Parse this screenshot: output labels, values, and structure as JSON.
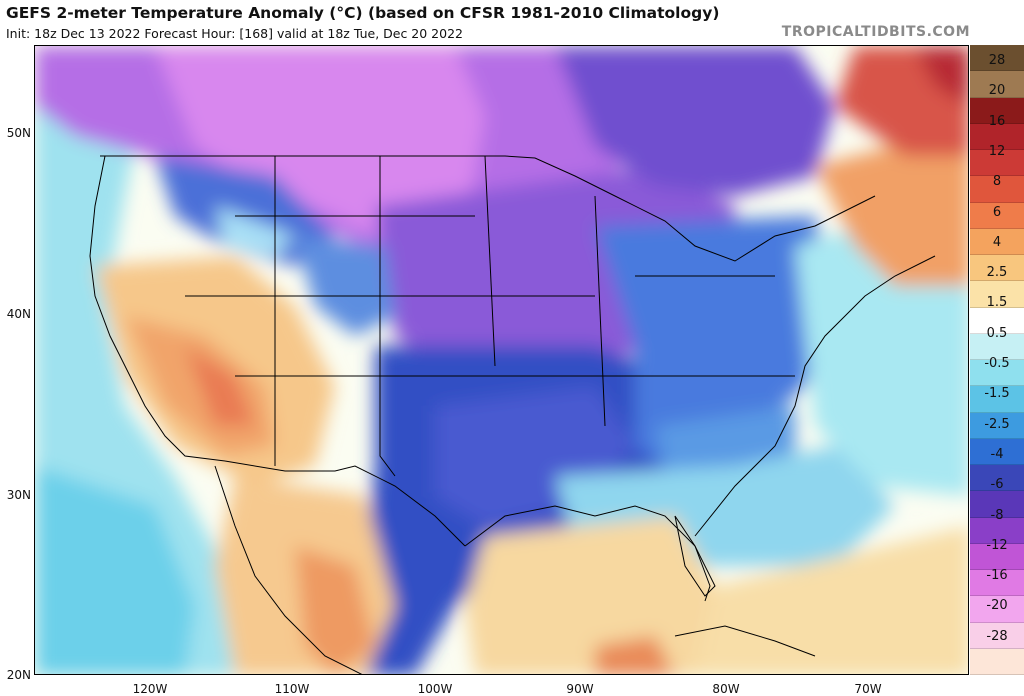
{
  "header": {
    "title": "GEFS 2-meter Temperature Anomaly (°C) (based on CFSR 1981-2010 Climatology)",
    "subtitle": "Init: 18z Dec 13 2022   Forecast Hour: [168]   valid at 18z Tue, Dec 20 2022",
    "brand": "TROPICALTIDBITS.COM"
  },
  "axes": {
    "lat_labels": [
      "50N",
      "40N",
      "30N",
      "20N"
    ],
    "lon_labels": [
      "120W",
      "110W",
      "100W",
      "90W",
      "80W",
      "70W"
    ]
  },
  "colorbar": {
    "labels": [
      "28",
      "20",
      "16",
      "12",
      "8",
      "6",
      "4",
      "2.5",
      "1.5",
      "0.5",
      "-0.5",
      "-1.5",
      "-2.5",
      "-4",
      "-6",
      "-8",
      "-12",
      "-16",
      "-20",
      "-28"
    ],
    "colors": [
      "#6b4f2f",
      "#9e7a52",
      "#8b1a1a",
      "#b0242a",
      "#cc3a36",
      "#e0563c",
      "#ef7c4a",
      "#f4a35e",
      "#f8c67e",
      "#fbe2a8",
      "#ffffff",
      "#c6f0f4",
      "#8fe0ee",
      "#5cc3e6",
      "#3d9be0",
      "#2e6fd4",
      "#3a47b8",
      "#5a37b8",
      "#8a3fc8",
      "#c055d6",
      "#e07ae4",
      "#f2a6ee",
      "#f9cfe8",
      "#fde6d8"
    ]
  },
  "map_colors": {
    "ocean_neutral": "#fbfdf2",
    "cold_deep": "#2e4fc0",
    "cold_violet": "#7a4fd6",
    "cold_magenta": "#c878e8",
    "cool_blue": "#4f8fe0",
    "cool_light": "#7ad0ea",
    "mild_cyan": "#b6ecf2",
    "warm_light": "#f8d79a",
    "warm_orange": "#f3b46e",
    "warm_red": "#e46e48",
    "hot_red": "#c03a38"
  }
}
